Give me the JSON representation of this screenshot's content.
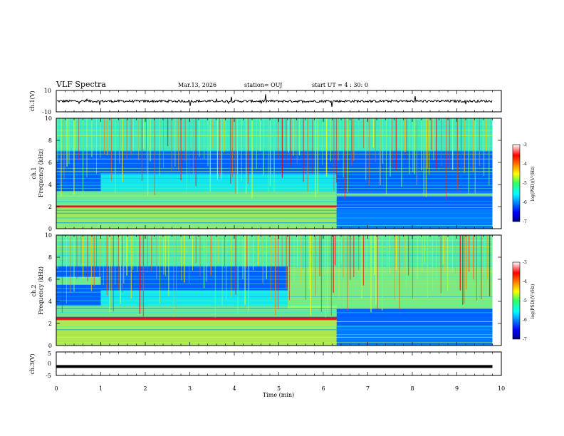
{
  "header": {
    "title": "VLF Spectra",
    "date": "Mar.13, 2026",
    "station": "station= OUJ",
    "start_ut": "start  UT =  4 : 30: 0"
  },
  "chart_data": [
    {
      "type": "line",
      "panel": "ch1-waveform",
      "ylabel": "ch.1(V)",
      "ylim": [
        -10,
        10
      ],
      "yticks": [
        "10",
        "-10"
      ],
      "xlim": [
        0,
        10
      ],
      "trace_level": 0,
      "trace_color": "#000000"
    },
    {
      "type": "heatmap",
      "panel": "ch1-spectrogram",
      "ylabel_top": "ch.1",
      "ylabel": "Frequency (kHz)",
      "ylim": [
        0,
        10
      ],
      "yticks": [
        "10",
        "8",
        "6",
        "4",
        "2",
        "0"
      ],
      "xlim": [
        0,
        10
      ],
      "data_end_min": 9.8,
      "colorbar": {
        "label": "log(PSD)(V²/Hz)",
        "range": [
          -7,
          -3
        ],
        "ticks": [
          "-3",
          "-4",
          "-5",
          "-6",
          "-7"
        ]
      },
      "bands": [
        {
          "f_lo": 0.0,
          "f_hi": 2.0,
          "t_lo": 0.0,
          "t_hi": 6.3,
          "level": -4.8
        },
        {
          "f_lo": 1.9,
          "f_hi": 2.1,
          "t_lo": 0.0,
          "t_hi": 6.3,
          "level": -3.5
        },
        {
          "f_lo": 2.1,
          "f_hi": 3.4,
          "t_lo": 0.0,
          "t_hi": 6.3,
          "level": -5.0
        },
        {
          "f_lo": 3.4,
          "f_hi": 5.0,
          "t_lo": 1.0,
          "t_hi": 6.3,
          "level": -5.4
        },
        {
          "f_lo": 3.0,
          "f_hi": 3.2,
          "t_lo": 6.3,
          "t_hi": 9.8,
          "level": -5.0
        },
        {
          "f_lo": 0.0,
          "f_hi": 1.8,
          "t_lo": 6.3,
          "t_hi": 9.8,
          "level": -6.0
        },
        {
          "f_lo": 7.0,
          "f_hi": 10.0,
          "t_lo": 0.0,
          "t_hi": 9.8,
          "level": -5.2
        }
      ]
    },
    {
      "type": "heatmap",
      "panel": "ch2-spectrogram",
      "ylabel_top": "ch.2",
      "ylabel": "Frequency (kHz)",
      "ylim": [
        0,
        10
      ],
      "yticks": [
        "10",
        "8",
        "6",
        "4",
        "2",
        "0"
      ],
      "xlim": [
        0,
        10
      ],
      "data_end_min": 9.8,
      "colorbar": {
        "label": "log(PSD)(V²/Hz)",
        "range": [
          -7,
          -3
        ],
        "ticks": [
          "-3",
          "-4",
          "-5",
          "-6",
          "-7"
        ]
      },
      "bands": [
        {
          "f_lo": 0.0,
          "f_hi": 2.4,
          "t_lo": 0.0,
          "t_hi": 6.3,
          "level": -4.7
        },
        {
          "f_lo": 2.3,
          "f_hi": 2.6,
          "t_lo": 0.0,
          "t_hi": 6.3,
          "level": -3.5
        },
        {
          "f_lo": 2.6,
          "f_hi": 3.6,
          "t_lo": 0.0,
          "t_hi": 6.3,
          "level": -5.0
        },
        {
          "f_lo": 3.6,
          "f_hi": 5.0,
          "t_lo": 1.0,
          "t_hi": 5.2,
          "level": -5.4
        },
        {
          "f_lo": 5.5,
          "f_hi": 6.2,
          "t_lo": 0.0,
          "t_hi": 1.0,
          "level": -5.0
        },
        {
          "f_lo": 3.3,
          "f_hi": 7.2,
          "t_lo": 5.2,
          "t_hi": 9.8,
          "level": -4.9
        },
        {
          "f_lo": 0.0,
          "f_hi": 1.8,
          "t_lo": 6.3,
          "t_hi": 9.8,
          "level": -6.0
        },
        {
          "f_lo": 7.2,
          "f_hi": 10.0,
          "t_lo": 0.0,
          "t_hi": 9.8,
          "level": -5.1
        }
      ]
    },
    {
      "type": "line",
      "panel": "ch3-waveform",
      "ylabel": "ch.3(V)",
      "ylim": [
        -5,
        5
      ],
      "yticks": [
        "5",
        "0",
        "-5"
      ],
      "xlim": [
        0,
        10
      ],
      "xlabel": "Time (min)",
      "xticks": [
        "0",
        "1",
        "2",
        "3",
        "4",
        "5",
        "6",
        "7",
        "8",
        "9",
        "10"
      ],
      "trace_level": -1.2,
      "trace_color": "#000000"
    }
  ],
  "colors": {
    "axis": "#000000",
    "background": "#ffffff"
  }
}
